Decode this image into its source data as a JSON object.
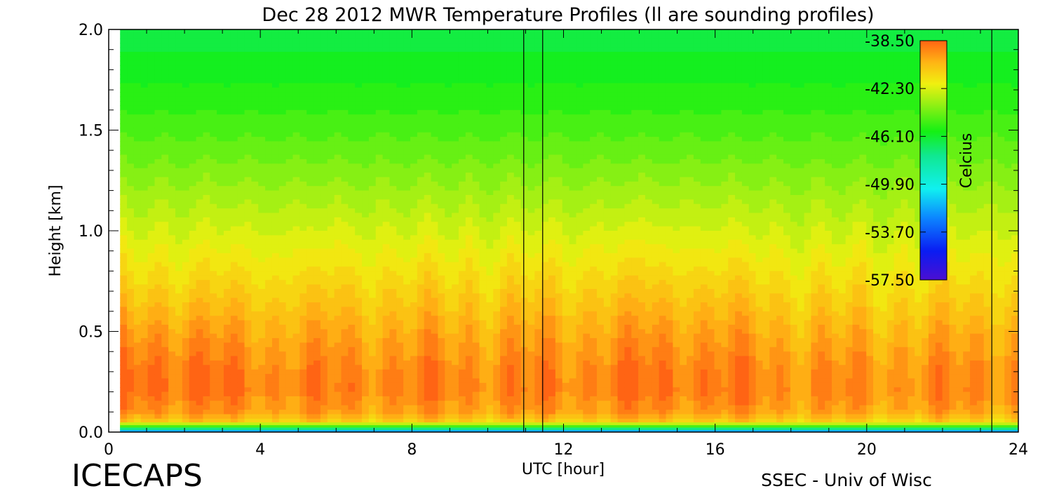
{
  "chart_data": {
    "type": "heatmap",
    "title": "Dec 28 2012 MWR Temperature Profiles (ll are sounding profiles)",
    "xlabel": "UTC [hour]",
    "ylabel": "Height [km]",
    "xlim": [
      0,
      24
    ],
    "ylim": [
      0,
      2.0
    ],
    "x_ticks": [
      0,
      4,
      8,
      12,
      16,
      20,
      24
    ],
    "x_tick_labels": [
      "0",
      "4",
      "8",
      "12",
      "16",
      "20",
      "24"
    ],
    "y_ticks": [
      0.0,
      0.5,
      1.0,
      1.5,
      2.0
    ],
    "y_tick_labels": [
      "0.0",
      "0.5",
      "1.0",
      "1.5",
      "2.0"
    ],
    "data_start_hour": 0.3,
    "data_end_hour": 24,
    "colorbar": {
      "label": "Celcius",
      "ticks": [
        -38.5,
        -42.3,
        -46.1,
        -49.9,
        -53.7,
        -57.5
      ],
      "tick_labels": [
        "-38.50",
        "-42.30",
        "-46.10",
        "-49.90",
        "-53.70",
        "-57.50"
      ],
      "range": [
        -57.5,
        -38.5
      ],
      "placement": "inside top-right"
    },
    "sounding_hours": [
      10.95,
      11.45,
      23.3
    ],
    "height_profile_km": [
      0.0,
      0.02,
      0.05,
      0.1,
      0.2,
      0.3,
      0.4,
      0.5,
      0.6,
      0.7,
      0.8,
      0.9,
      1.0,
      1.2,
      1.4,
      1.6,
      1.8,
      2.0
    ],
    "temperature_profile_c": [
      -54.0,
      -47.0,
      -41.0,
      -39.8,
      -39.2,
      -39.3,
      -39.7,
      -40.1,
      -40.6,
      -41.1,
      -41.6,
      -42.1,
      -42.6,
      -43.5,
      -44.4,
      -45.2,
      -45.9,
      -46.5
    ],
    "grid": false,
    "legend": "none"
  },
  "footer": {
    "left": "ICECAPS",
    "right": "SSEC - Univ of Wisc"
  }
}
